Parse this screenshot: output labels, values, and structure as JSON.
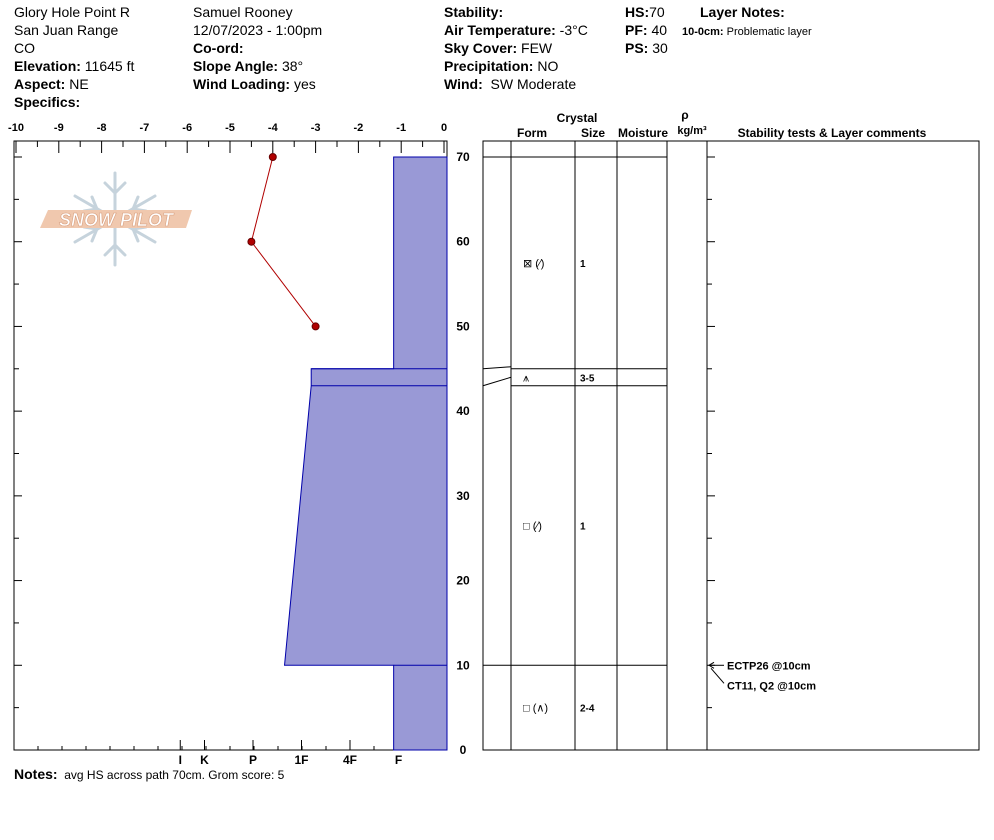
{
  "header": {
    "location": "Glory Hole Point R",
    "range": "San Juan Range",
    "state": "CO",
    "elevation_label": "Elevation:",
    "elevation_value": "11645 ft",
    "aspect_label": "Aspect:",
    "aspect_value": "NE",
    "specifics_label": "Specifics:",
    "observer": "Samuel  Rooney",
    "datetime": "12/07/2023 - 1:00pm",
    "coord_label": "Co-ord:",
    "slope_label": "Slope Angle:",
    "slope_value": "38°",
    "wind_loading_label": "Wind Loading:",
    "wind_loading_value": "yes",
    "stability_label": "Stability:",
    "air_temp_label": "Air Temperature:",
    "air_temp_value": "-3°C",
    "sky_label": "Sky Cover:",
    "sky_value": "FEW",
    "precip_label": "Precipitation:",
    "precip_value": "NO",
    "wind_label": "Wind:",
    "wind_value": "SW Moderate",
    "hs_label": "HS:",
    "hs_value": "70",
    "pf_label": "PF:",
    "pf_value": "40",
    "ps_label": "PS:",
    "ps_value": "30",
    "layer_notes_label": "Layer Notes:",
    "layer_note_depth": "10-0cm:",
    "layer_note_text": "Problematic layer"
  },
  "notes": {
    "label": "Notes:",
    "text": "avg HS across path 70cm. Grom score: 5"
  },
  "columns": {
    "crystal": "Crystal",
    "form": "Form",
    "size": "Size",
    "moisture": "Moisture",
    "rho": "ρ",
    "density_unit": "kg/m³",
    "stability": "Stability tests & Layer comments"
  },
  "watermark": "SNOW PILOT",
  "colors": {
    "hardness_fill": "#9999d6",
    "hardness_stroke": "#0000aa",
    "temperature": "#b00000"
  },
  "chart_data": {
    "type": "area",
    "subtype": "snow-profile",
    "y_axis": {
      "label": "",
      "ylim": [
        0,
        70
      ],
      "ticks": [
        0,
        10,
        20,
        30,
        40,
        50,
        60,
        70
      ]
    },
    "temperature_axis": {
      "range": [
        -10,
        0
      ],
      "ticks": [
        "-10",
        "-9",
        "-8",
        "-7",
        "-6",
        "-5",
        "-4",
        "-3",
        "-2",
        "-1",
        "0"
      ]
    },
    "hardness_axis": {
      "ticks": [
        "I",
        "K",
        "P",
        "1F",
        "4F",
        "F"
      ],
      "tick_values": [
        5.5,
        5,
        4,
        3,
        2,
        1
      ]
    },
    "temperature_profile": [
      {
        "depth": 70,
        "temp": -4
      },
      {
        "depth": 60,
        "temp": -4.5
      },
      {
        "depth": 50,
        "temp": -3
      }
    ],
    "hardness_layers": [
      {
        "top": 70,
        "bottom": 45,
        "hardness_top": 1.1,
        "hardness_bottom": 1.1
      },
      {
        "top": 45,
        "bottom": 43,
        "hardness_top": 2.8,
        "hardness_bottom": 2.8
      },
      {
        "top": 43,
        "bottom": 10,
        "hardness_top": 2.8,
        "hardness_bottom": 3.35
      },
      {
        "top": 10,
        "bottom": 0,
        "hardness_top": 1.1,
        "hardness_bottom": 1.1
      }
    ],
    "layers": [
      {
        "top": 70,
        "bottom": 45,
        "label_depth": 57.5,
        "form_symbols": [
          "⊠",
          "(⁄)"
        ],
        "size": "1"
      },
      {
        "top": 45,
        "bottom": 43,
        "label_depth": 44,
        "form_symbols": [
          "⩚"
        ],
        "size": "3-5"
      },
      {
        "top": 43,
        "bottom": 10,
        "label_depth": 26.5,
        "form_symbols": [
          "□",
          "(⁄)"
        ],
        "size": "1"
      },
      {
        "top": 10,
        "bottom": 0,
        "label_depth": 5,
        "form_symbols": [
          "□",
          "(∧)"
        ],
        "size": "2-4"
      }
    ],
    "stability_tests": [
      {
        "depth": 10,
        "text": "ECTP26 @10cm"
      },
      {
        "depth": 10,
        "text": "CT11, Q2 @10cm"
      }
    ]
  }
}
